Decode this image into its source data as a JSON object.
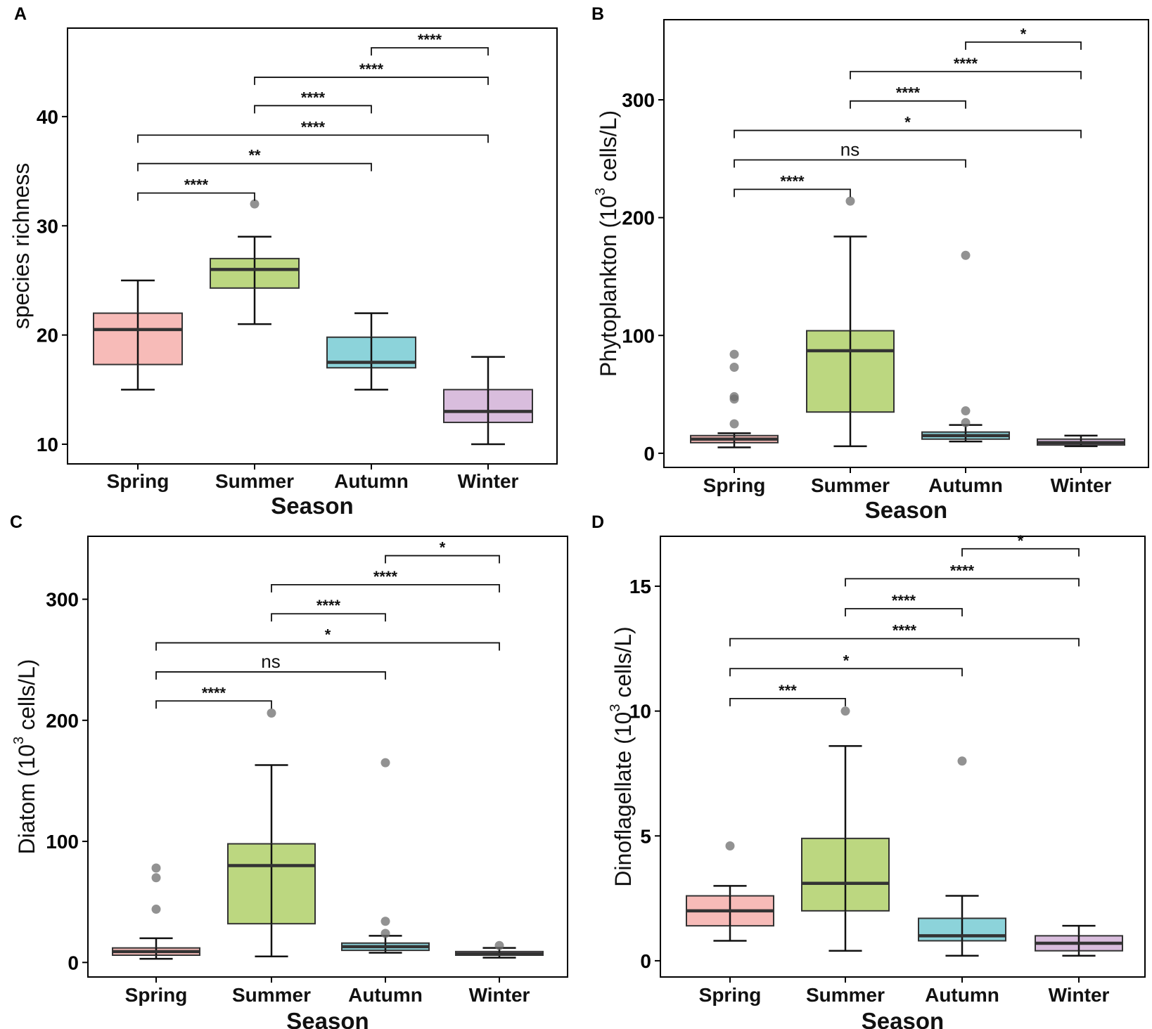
{
  "figure": {
    "seasons_label": "Season"
  },
  "chart_data": [
    {
      "panel": "A",
      "type": "boxplot",
      "title": "",
      "xlabel": "Season",
      "ylabel": "species richness",
      "ylabel_sup": "",
      "ylabel_suffix": "",
      "ylim": [
        8.2,
        48.1
      ],
      "yticks": [
        10,
        20,
        30,
        40
      ],
      "categories": [
        "Spring",
        "Summer",
        "Autumn",
        "Winter"
      ],
      "colors": [
        "#F7BBB8",
        "#BCD780",
        "#8CD3DA",
        "#D9BDDD"
      ],
      "boxes": [
        {
          "q1": 17.3,
          "median": 20.5,
          "q3": 22.0,
          "whislo": 15,
          "whishi": 25,
          "outliers": []
        },
        {
          "q1": 24.3,
          "median": 26.0,
          "q3": 27.0,
          "whislo": 21,
          "whishi": 29,
          "outliers": [
            32
          ]
        },
        {
          "q1": 17.0,
          "median": 17.5,
          "q3": 19.8,
          "whislo": 15,
          "whishi": 22,
          "outliers": []
        },
        {
          "q1": 12.0,
          "median": 13.0,
          "q3": 15.0,
          "whislo": 10,
          "whishi": 18,
          "outliers": []
        }
      ],
      "comparisons": [
        {
          "from": 0,
          "to": 1,
          "y": 33.0,
          "label": "****"
        },
        {
          "from": 0,
          "to": 2,
          "y": 35.7,
          "label": "**"
        },
        {
          "from": 0,
          "to": 3,
          "y": 38.3,
          "label": "****"
        },
        {
          "from": 1,
          "to": 2,
          "y": 41.0,
          "label": "****"
        },
        {
          "from": 1,
          "to": 3,
          "y": 43.6,
          "label": "****"
        },
        {
          "from": 2,
          "to": 3,
          "y": 46.3,
          "label": "****"
        }
      ]
    },
    {
      "panel": "B",
      "type": "boxplot",
      "title": "",
      "xlabel": "Season",
      "ylabel": "Phytoplankton (10",
      "ylabel_sup": "3",
      "ylabel_suffix": " cells/L)",
      "ylim": [
        -12,
        368
      ],
      "yticks": [
        0,
        100,
        200,
        300
      ],
      "categories": [
        "Spring",
        "Summer",
        "Autumn",
        "Winter"
      ],
      "colors": [
        "#F7BBB8",
        "#BCD780",
        "#8CD3DA",
        "#D9BDDD"
      ],
      "boxes": [
        {
          "q1": 9,
          "median": 12,
          "q3": 15,
          "whislo": 5,
          "whishi": 17,
          "outliers": [
            84,
            73,
            48,
            46,
            25
          ]
        },
        {
          "q1": 35,
          "median": 87,
          "q3": 104,
          "whislo": 6,
          "whishi": 184,
          "outliers": [
            214
          ]
        },
        {
          "q1": 12,
          "median": 15,
          "q3": 18,
          "whislo": 10,
          "whishi": 24,
          "outliers": [
            168,
            36,
            26
          ]
        },
        {
          "q1": 7,
          "median": 9,
          "q3": 12,
          "whislo": 6,
          "whishi": 15,
          "outliers": []
        }
      ],
      "comparisons": [
        {
          "from": 0,
          "to": 1,
          "y": 224,
          "label": "****"
        },
        {
          "from": 0,
          "to": 2,
          "y": 249,
          "label": "ns"
        },
        {
          "from": 0,
          "to": 3,
          "y": 274,
          "label": "*"
        },
        {
          "from": 1,
          "to": 2,
          "y": 299,
          "label": "****"
        },
        {
          "from": 1,
          "to": 3,
          "y": 324,
          "label": "****"
        },
        {
          "from": 2,
          "to": 3,
          "y": 349,
          "label": "*"
        }
      ]
    },
    {
      "panel": "C",
      "type": "boxplot",
      "title": "",
      "xlabel": "Season",
      "ylabel": "Diatom (10",
      "ylabel_sup": "3",
      "ylabel_suffix": " cells/L)",
      "ylim": [
        -12,
        352
      ],
      "yticks": [
        0,
        100,
        200,
        300
      ],
      "categories": [
        "Spring",
        "Summer",
        "Autumn",
        "Winter"
      ],
      "colors": [
        "#F7BBB8",
        "#BCD780",
        "#8CD3DA",
        "#D9BDDD"
      ],
      "boxes": [
        {
          "q1": 6,
          "median": 9,
          "q3": 12,
          "whislo": 3,
          "whishi": 20,
          "outliers": [
            78,
            70,
            44
          ]
        },
        {
          "q1": 32,
          "median": 80,
          "q3": 98,
          "whislo": 5,
          "whishi": 163,
          "outliers": [
            206
          ]
        },
        {
          "q1": 10,
          "median": 13,
          "q3": 16,
          "whislo": 8,
          "whishi": 22,
          "outliers": [
            165,
            34,
            24
          ]
        },
        {
          "q1": 6,
          "median": 7,
          "q3": 9,
          "whislo": 4,
          "whishi": 12,
          "outliers": [
            14
          ]
        }
      ],
      "comparisons": [
        {
          "from": 0,
          "to": 1,
          "y": 216,
          "label": "****"
        },
        {
          "from": 0,
          "to": 2,
          "y": 240,
          "label": "ns"
        },
        {
          "from": 0,
          "to": 3,
          "y": 264,
          "label": "*"
        },
        {
          "from": 1,
          "to": 2,
          "y": 288,
          "label": "****"
        },
        {
          "from": 1,
          "to": 3,
          "y": 312,
          "label": "****"
        },
        {
          "from": 2,
          "to": 3,
          "y": 336,
          "label": "*"
        }
      ]
    },
    {
      "panel": "D",
      "type": "boxplot",
      "title": "",
      "xlabel": "Season",
      "ylabel": "Dinoflagellate (10",
      "ylabel_sup": "3",
      "ylabel_suffix": " cells/L)",
      "ylim": [
        -0.65,
        17.0
      ],
      "yticks": [
        0,
        5,
        10,
        15
      ],
      "categories": [
        "Spring",
        "Summer",
        "Autumn",
        "Winter"
      ],
      "colors": [
        "#F7BBB8",
        "#BCD780",
        "#8CD3DA",
        "#D9BDDD"
      ],
      "boxes": [
        {
          "q1": 1.4,
          "median": 2.0,
          "q3": 2.6,
          "whislo": 0.8,
          "whishi": 3.0,
          "outliers": [
            4.6
          ]
        },
        {
          "q1": 2.0,
          "median": 3.1,
          "q3": 4.9,
          "whislo": 0.4,
          "whishi": 8.6,
          "outliers": [
            10.0
          ]
        },
        {
          "q1": 0.8,
          "median": 1.0,
          "q3": 1.7,
          "whislo": 0.2,
          "whishi": 2.6,
          "outliers": [
            8.0
          ]
        },
        {
          "q1": 0.4,
          "median": 0.7,
          "q3": 1.0,
          "whislo": 0.2,
          "whishi": 1.4,
          "outliers": []
        }
      ],
      "comparisons": [
        {
          "from": 0,
          "to": 1,
          "y": 10.5,
          "label": "***"
        },
        {
          "from": 0,
          "to": 2,
          "y": 11.7,
          "label": "*"
        },
        {
          "from": 0,
          "to": 3,
          "y": 12.9,
          "label": "****"
        },
        {
          "from": 1,
          "to": 2,
          "y": 14.1,
          "label": "****"
        },
        {
          "from": 1,
          "to": 3,
          "y": 15.3,
          "label": "****"
        },
        {
          "from": 2,
          "to": 3,
          "y": 16.5,
          "label": "*"
        }
      ]
    }
  ]
}
